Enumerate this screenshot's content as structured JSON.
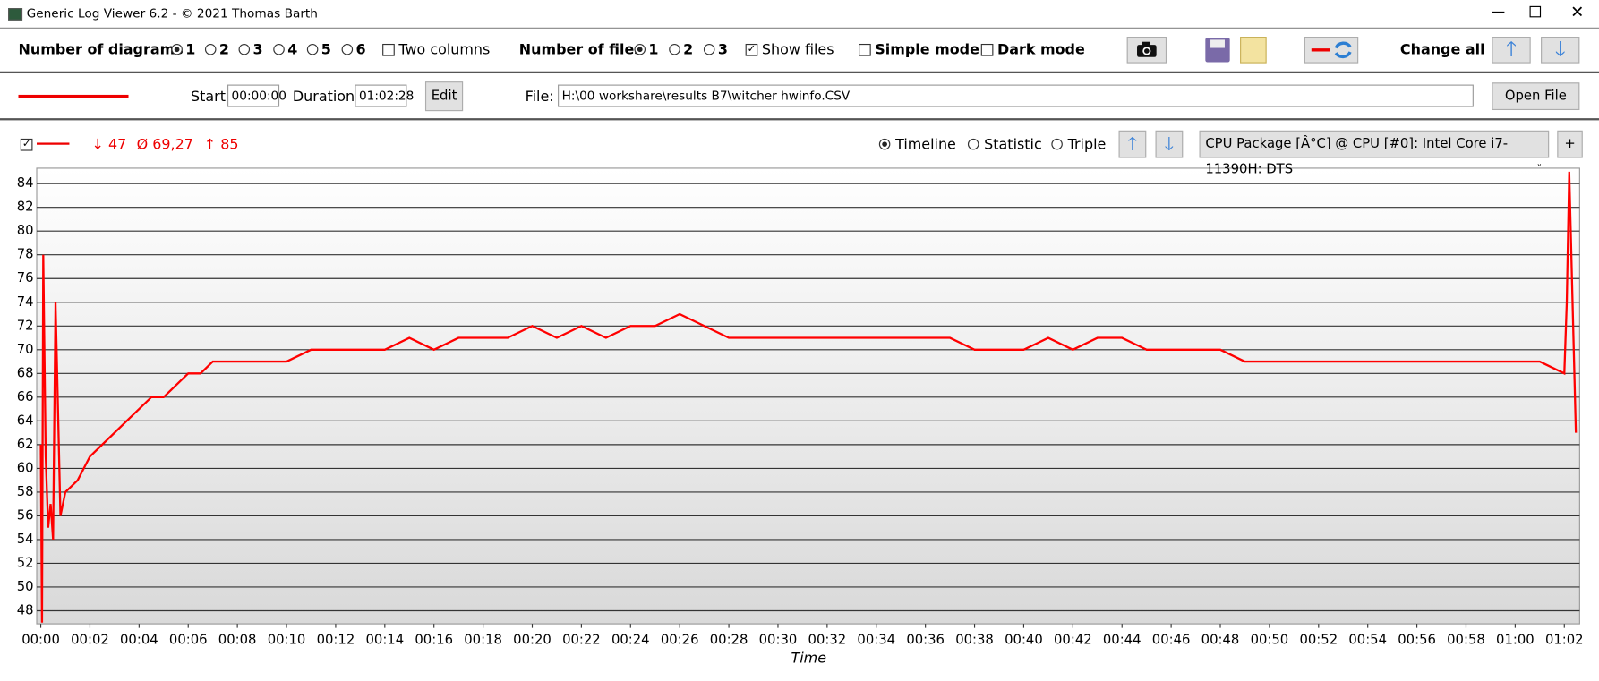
{
  "ui": {
    "window": {
      "title": "Generic Log Viewer 6.2 - © 2021 Thomas Barth"
    },
    "toolbar": {
      "diagrams_label": "Number of diagrams",
      "diagram_options": [
        "1",
        "2",
        "3",
        "4",
        "5",
        "6"
      ],
      "two_columns": "Two columns",
      "files_label": "Number of files",
      "file_options": [
        "1",
        "2",
        "3"
      ],
      "show_files": "Show files",
      "simple_mode": "Simple mode",
      "dark_mode": "Dark mode",
      "change_all": "Change all"
    },
    "file_row": {
      "start_label": "Start:",
      "start": "00:00:00",
      "duration_label": "Duration:",
      "duration": "01:02:28",
      "edit": "Edit",
      "file_label": "File:",
      "file": "H:\\00 workshare\\results B7\\witcher hwinfo.CSV",
      "open": "Open File"
    },
    "chart_header": {
      "min": "↓ 47",
      "avg": "Ø 69,27",
      "max": "↑ 85",
      "views": [
        "Timeline",
        "Statistic",
        "Triple"
      ],
      "channel": "CPU Package [Â°C] @ CPU [#0]: Intel Core i7-11390H: DTS",
      "add": "+"
    }
  },
  "chart_data": {
    "type": "line",
    "x_label": "Time",
    "color": "#ff0000",
    "x": [
      0,
      0.05,
      0.1,
      0.2,
      0.3,
      0.4,
      0.5,
      0.6,
      0.8,
      1,
      1.5,
      2,
      2.5,
      3,
      3.5,
      4,
      4.5,
      5,
      5.5,
      6,
      6.5,
      7,
      7.5,
      8,
      9,
      10,
      11,
      12,
      13,
      14,
      15,
      16,
      17,
      18,
      19,
      20,
      21,
      22,
      23,
      24,
      25,
      26,
      27,
      28,
      29,
      30,
      31,
      32,
      33,
      34,
      35,
      36,
      37,
      38,
      39,
      40,
      41,
      42,
      43,
      44,
      45,
      46,
      47,
      48,
      49,
      50,
      51,
      52,
      53,
      54,
      55,
      56,
      57,
      58,
      59,
      60,
      61,
      62,
      62.1,
      62.2,
      62.47
    ],
    "values": [
      62,
      47,
      78,
      61,
      55,
      57,
      54,
      74,
      56,
      58,
      59,
      61,
      62,
      63,
      64,
      65,
      66,
      66,
      67,
      68,
      68,
      69,
      69,
      69,
      69,
      69,
      70,
      70,
      70,
      70,
      71,
      70,
      71,
      71,
      71,
      72,
      71,
      72,
      71,
      72,
      72,
      73,
      72,
      71,
      71,
      71,
      71,
      71,
      71,
      71,
      71,
      71,
      71,
      70,
      70,
      70,
      71,
      70,
      71,
      71,
      70,
      70,
      70,
      70,
      69,
      69,
      69,
      69,
      69,
      69,
      69,
      69,
      69,
      69,
      69,
      69,
      69,
      68,
      74,
      85,
      63
    ],
    "xlim": [
      0,
      62.47
    ],
    "xticks": [
      {
        "value": 0,
        "label": "00:00"
      },
      {
        "value": 2,
        "label": "00:02"
      },
      {
        "value": 4,
        "label": "00:04"
      },
      {
        "value": 6,
        "label": "00:06"
      },
      {
        "value": 8,
        "label": "00:08"
      },
      {
        "value": 10,
        "label": "00:10"
      },
      {
        "value": 12,
        "label": "00:12"
      },
      {
        "value": 14,
        "label": "00:14"
      },
      {
        "value": 16,
        "label": "00:16"
      },
      {
        "value": 18,
        "label": "00:18"
      },
      {
        "value": 20,
        "label": "00:20"
      },
      {
        "value": 22,
        "label": "00:22"
      },
      {
        "value": 24,
        "label": "00:24"
      },
      {
        "value": 26,
        "label": "00:26"
      },
      {
        "value": 28,
        "label": "00:28"
      },
      {
        "value": 30,
        "label": "00:30"
      },
      {
        "value": 32,
        "label": "00:32"
      },
      {
        "value": 34,
        "label": "00:34"
      },
      {
        "value": 36,
        "label": "00:36"
      },
      {
        "value": 38,
        "label": "00:38"
      },
      {
        "value": 40,
        "label": "00:40"
      },
      {
        "value": 42,
        "label": "00:42"
      },
      {
        "value": 44,
        "label": "00:44"
      },
      {
        "value": 46,
        "label": "00:46"
      },
      {
        "value": 48,
        "label": "00:48"
      },
      {
        "value": 50,
        "label": "00:50"
      },
      {
        "value": 52,
        "label": "00:52"
      },
      {
        "value": 54,
        "label": "00:54"
      },
      {
        "value": 56,
        "label": "00:56"
      },
      {
        "value": 58,
        "label": "00:58"
      },
      {
        "value": 60,
        "label": "01:00"
      },
      {
        "value": 62,
        "label": "01:02"
      }
    ],
    "ylim": [
      46.9,
      85.3
    ],
    "yticks": [
      48,
      50,
      52,
      54,
      56,
      58,
      60,
      62,
      64,
      66,
      68,
      70,
      72,
      74,
      76,
      78,
      80,
      82,
      84
    ],
    "grid": true
  }
}
